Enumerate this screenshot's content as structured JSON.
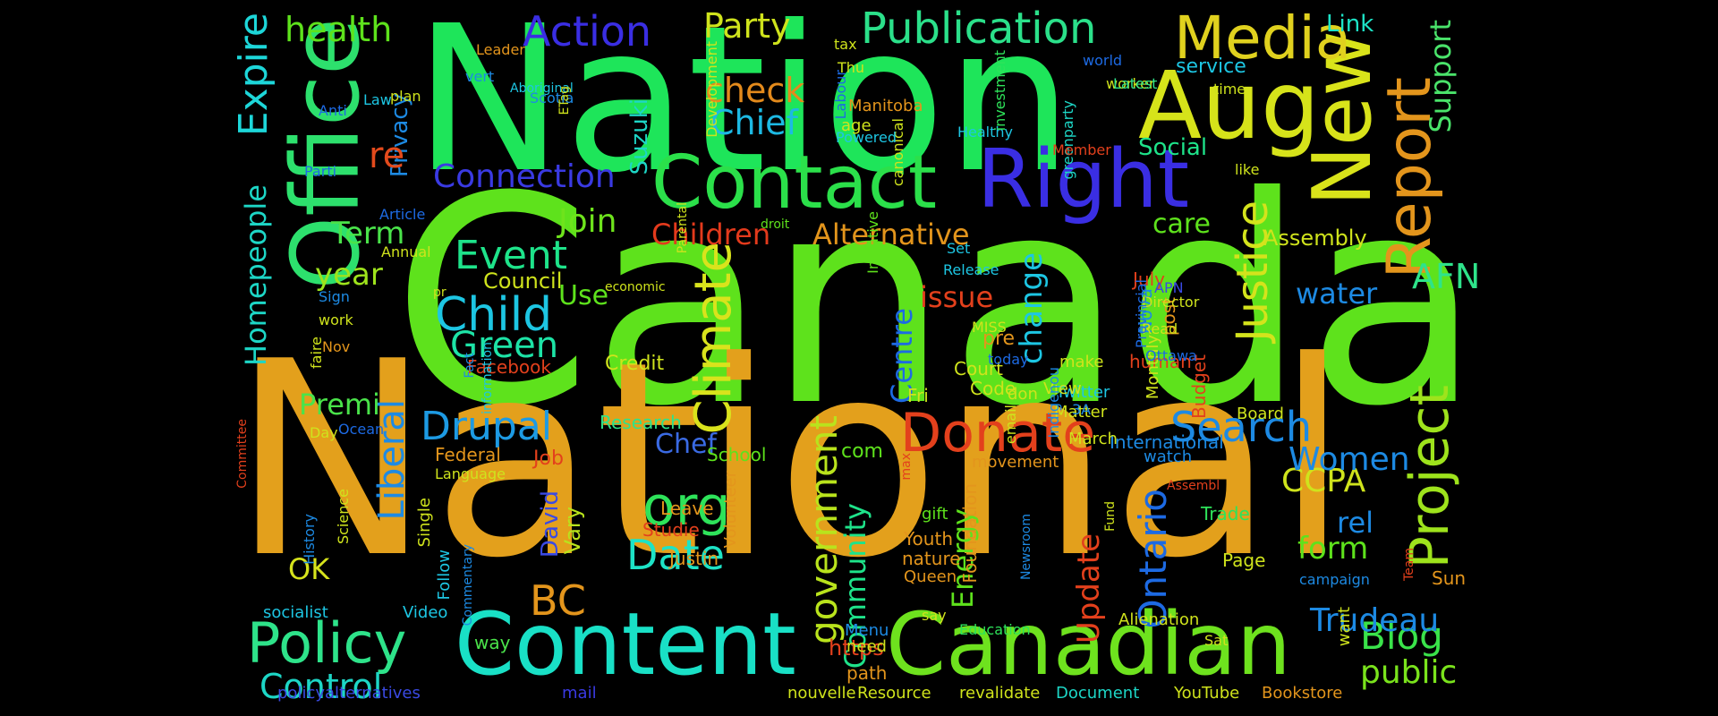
{
  "word_cloud": {
    "words": [
      {
        "text": "Canada",
        "color": "#5ee21c",
        "vertical": false
      },
      {
        "text": "National",
        "color": "#e3a01c",
        "vertical": false
      },
      {
        "text": "Nation",
        "color": "#1ee55a",
        "vertical": false
      },
      {
        "text": "Content",
        "color": "#19e0c6",
        "vertical": false
      },
      {
        "text": "Canadian",
        "color": "#6ee21e",
        "vertical": false
      },
      {
        "text": "Office",
        "color": "#2de06d",
        "vertical": true
      },
      {
        "text": "Contact",
        "color": "#2be04a",
        "vertical": false
      },
      {
        "text": "Right",
        "color": "#3a2ee3",
        "vertical": false
      },
      {
        "text": "Aug",
        "color": "#d6e31a",
        "vertical": false
      },
      {
        "text": "New",
        "color": "#d9e31a",
        "vertical": true
      },
      {
        "text": "Media",
        "color": "#e0d11e",
        "vertical": false
      },
      {
        "text": "Report",
        "color": "#e3951c",
        "vertical": true
      },
      {
        "text": "Publication",
        "color": "#2be08a",
        "vertical": false
      },
      {
        "text": "Action",
        "color": "#3a2ee3",
        "vertical": false
      },
      {
        "text": "Party",
        "color": "#cfe31c",
        "vertical": false
      },
      {
        "text": "health",
        "color": "#5ee21c",
        "vertical": false
      },
      {
        "text": "Expire",
        "color": "#1dd6d9",
        "vertical": true
      },
      {
        "text": "check",
        "color": "#e38a1c",
        "vertical": false
      },
      {
        "text": "Chief",
        "color": "#1db9e3",
        "vertical": false
      },
      {
        "text": "Connection",
        "color": "#3a3ae3",
        "vertical": false
      },
      {
        "text": "Donate",
        "color": "#e3401c",
        "vertical": false
      },
      {
        "text": "Search",
        "color": "#1d8ae3",
        "vertical": false
      },
      {
        "text": "Drupal",
        "color": "#1d9ae3",
        "vertical": false
      },
      {
        "text": "Child",
        "color": "#1dc6e3",
        "vertical": false
      },
      {
        "text": "Event",
        "color": "#1ee38a",
        "vertical": false
      },
      {
        "text": "Green",
        "color": "#1de3a6",
        "vertical": false
      },
      {
        "text": "Climate",
        "color": "#d9e31c",
        "vertical": true
      },
      {
        "text": "Project",
        "color": "#9ee31c",
        "vertical": true
      },
      {
        "text": "Justice",
        "color": "#d4e31c",
        "vertical": true
      },
      {
        "text": "Policy",
        "color": "#2ee38a",
        "vertical": false
      },
      {
        "text": "Control",
        "color": "#1dd6c6",
        "vertical": false
      },
      {
        "text": "Blog",
        "color": "#3ae34a",
        "vertical": false
      },
      {
        "text": "public",
        "color": "#7ae31c",
        "vertical": false
      },
      {
        "text": "Trudeau",
        "color": "#1d8ae3",
        "vertical": false
      },
      {
        "text": "org",
        "color": "#2ee35a",
        "vertical": false
      },
      {
        "text": "Date",
        "color": "#1de3c6",
        "vertical": false
      },
      {
        "text": "BC",
        "color": "#e3951c",
        "vertical": false
      },
      {
        "text": "Liberal",
        "color": "#1d8ae3",
        "vertical": true
      },
      {
        "text": "government",
        "color": "#b9e31c",
        "vertical": true
      },
      {
        "text": "Alternative",
        "color": "#e3951c",
        "vertical": false
      },
      {
        "text": "Children",
        "color": "#e33a1c",
        "vertical": false
      },
      {
        "text": "Join",
        "color": "#6ee31c",
        "vertical": false
      },
      {
        "text": "Term",
        "color": "#4ae34a",
        "vertical": false
      },
      {
        "text": "year",
        "color": "#9ee31c",
        "vertical": false
      },
      {
        "text": "Homepeople",
        "color": "#1dd6c6",
        "vertical": true
      },
      {
        "text": "Premi",
        "color": "#4ae34a",
        "vertical": false
      },
      {
        "text": "OK",
        "color": "#d6e31c",
        "vertical": false
      },
      {
        "text": "AFN",
        "color": "#2ee38a",
        "vertical": false
      },
      {
        "text": "water",
        "color": "#1d8ae3",
        "vertical": false
      },
      {
        "text": "CCPA",
        "color": "#cfe31c",
        "vertical": false
      },
      {
        "text": "Women",
        "color": "#1d8ae3",
        "vertical": false
      },
      {
        "text": "rel",
        "color": "#1d8ae3",
        "vertical": false
      },
      {
        "text": "form",
        "color": "#5ee21c",
        "vertical": false
      },
      {
        "text": "Ontario",
        "color": "#1d6ae3",
        "vertical": true
      },
      {
        "text": "Update",
        "color": "#e3401c",
        "vertical": true
      },
      {
        "text": "Energy",
        "color": "#5ee21c",
        "vertical": true
      },
      {
        "text": "Community",
        "color": "#1ee38a",
        "vertical": true
      },
      {
        "text": "Centre",
        "color": "#1d6ae3",
        "vertical": true
      },
      {
        "text": "change",
        "color": "#1dc6e3",
        "vertical": true
      },
      {
        "text": "issue",
        "color": "#e3401c",
        "vertical": false
      },
      {
        "text": "care",
        "color": "#5ee21c",
        "vertical": false
      },
      {
        "text": "Assembly",
        "color": "#cfe31c",
        "vertical": false
      },
      {
        "text": "Support",
        "color": "#4ae36a",
        "vertical": true
      },
      {
        "text": "Social",
        "color": "#1ee38a",
        "vertical": false
      },
      {
        "text": "Link",
        "color": "#1de3c6",
        "vertical": false
      },
      {
        "text": "service",
        "color": "#1dc6e3",
        "vertical": false
      },
      {
        "text": "Use",
        "color": "#5ee21c",
        "vertical": false
      },
      {
        "text": "Council",
        "color": "#cfe31c",
        "vertical": false
      },
      {
        "text": "David",
        "color": "#3a4ae3",
        "vertical": true
      },
      {
        "text": "Vary",
        "color": "#b9e31c",
        "vertical": true
      },
      {
        "text": "Chef",
        "color": "#3a6ae3",
        "vertical": false
      },
      {
        "text": "com",
        "color": "#5ee21c",
        "vertical": false
      },
      {
        "text": "Job",
        "color": "#e3401c",
        "vertical": false
      },
      {
        "text": "https",
        "color": "#e3401c",
        "vertical": false
      },
      {
        "text": "Privacy",
        "color": "#1d8ae3",
        "vertical": true
      },
      {
        "text": "re",
        "color": "#e34a1c",
        "vertical": false
      },
      {
        "text": "Suzuki",
        "color": "#1dd6c6",
        "vertical": true
      },
      {
        "text": "Credit",
        "color": "#cfe31c",
        "vertical": false
      },
      {
        "text": "Facebook",
        "color": "#e3401c",
        "vertical": false
      },
      {
        "text": "Research",
        "color": "#2ee38a",
        "vertical": false
      },
      {
        "text": "Federal",
        "color": "#e3951c",
        "vertical": false
      },
      {
        "text": "School",
        "color": "#5ee21c",
        "vertical": false
      },
      {
        "text": "Leave",
        "color": "#e3951c",
        "vertical": false
      },
      {
        "text": "Justin",
        "color": "#e3951c",
        "vertical": false
      },
      {
        "text": "Studie",
        "color": "#e3401c",
        "vertical": false
      },
      {
        "text": "Volunteer",
        "color": "#e3951c",
        "vertical": true
      },
      {
        "text": "Youth",
        "color": "#e3951c",
        "vertical": false
      },
      {
        "text": "nature",
        "color": "#e3951c",
        "vertical": false
      },
      {
        "text": "gift",
        "color": "#5ee21c",
        "vertical": false
      },
      {
        "text": "Queen",
        "color": "#e3951c",
        "vertical": false
      },
      {
        "text": "Foundation",
        "color": "#e3951c",
        "vertical": true
      },
      {
        "text": "Trade",
        "color": "#2ee35a",
        "vertical": false
      },
      {
        "text": "Page",
        "color": "#cfe31c",
        "vertical": false
      },
      {
        "text": "campaign",
        "color": "#1d8ae3",
        "vertical": false
      },
      {
        "text": "Sun",
        "color": "#e3951c",
        "vertical": false
      },
      {
        "text": "Team",
        "color": "#e3401c",
        "vertical": true
      },
      {
        "text": "Bookstore",
        "color": "#e3951c",
        "vertical": false
      },
      {
        "text": "YouTube",
        "color": "#cfe31c",
        "vertical": false
      },
      {
        "text": "Document",
        "color": "#1dd6c6",
        "vertical": false
      },
      {
        "text": "revalidate",
        "color": "#cfe31c",
        "vertical": false
      },
      {
        "text": "Resource",
        "color": "#cfe31c",
        "vertical": false
      },
      {
        "text": "nouvelle",
        "color": "#cfe31c",
        "vertical": false
      },
      {
        "text": "mail",
        "color": "#3a3ae3",
        "vertical": false
      },
      {
        "text": "policyalternatives",
        "color": "#3a4ae3",
        "vertical": false
      },
      {
        "text": "socialist",
        "color": "#1dc6e3",
        "vertical": false
      },
      {
        "text": "Video",
        "color": "#1dc6e3",
        "vertical": false
      },
      {
        "text": "way",
        "color": "#4ae34a",
        "vertical": false
      },
      {
        "text": "path",
        "color": "#e3951c",
        "vertical": false
      },
      {
        "text": "Menu",
        "color": "#1d8ae3",
        "vertical": false
      },
      {
        "text": "need",
        "color": "#cfe31c",
        "vertical": false
      },
      {
        "text": "say",
        "color": "#cfe31c",
        "vertical": false
      },
      {
        "text": "Education",
        "color": "#2ee35a",
        "vertical": false
      },
      {
        "text": "Alienation",
        "color": "#cfe31c",
        "vertical": false
      },
      {
        "text": "Sat",
        "color": "#cfe31c",
        "vertical": false
      },
      {
        "text": "want",
        "color": "#cfe31c",
        "vertical": true
      },
      {
        "text": "Assembl",
        "color": "#e3401c",
        "vertical": false
      },
      {
        "text": "Fund",
        "color": "#cfe31c",
        "vertical": true
      },
      {
        "text": "Newsroom",
        "color": "#1d8ae3",
        "vertical": true
      },
      {
        "text": "max",
        "color": "#e3401c",
        "vertical": true
      },
      {
        "text": "movement",
        "color": "#e3951c",
        "vertical": false
      },
      {
        "text": "watch",
        "color": "#1d8ae3",
        "vertical": false
      },
      {
        "text": "International",
        "color": "#1d8ae3",
        "vertical": false
      },
      {
        "text": "Matter",
        "color": "#cfe31c",
        "vertical": false
      },
      {
        "text": "Twitter",
        "color": "#1dc6e3",
        "vertical": false
      },
      {
        "text": "View",
        "color": "#cfe31c",
        "vertical": false
      },
      {
        "text": "Board",
        "color": "#cfe31c",
        "vertical": false
      },
      {
        "text": "Court",
        "color": "#cfe31c",
        "vertical": false
      },
      {
        "text": "make",
        "color": "#cfe31c",
        "vertical": false
      },
      {
        "text": "pre",
        "color": "#e3951c",
        "vertical": false
      },
      {
        "text": "post",
        "color": "#e3951c",
        "vertical": true
      },
      {
        "text": "July",
        "color": "#e3401c",
        "vertical": false
      },
      {
        "text": "Budget",
        "color": "#e3401c",
        "vertical": true
      },
      {
        "text": "Nova",
        "color": "#1d8ae3",
        "vertical": true
      },
      {
        "text": "human",
        "color": "#e3401c",
        "vertical": false
      },
      {
        "text": "don",
        "color": "#cfe31c",
        "vertical": false
      },
      {
        "text": "Fri",
        "color": "#cfe31c",
        "vertical": false
      },
      {
        "text": "email",
        "color": "#cfe31c",
        "vertical": true
      },
      {
        "text": "Indigenou",
        "color": "#1d8ae3",
        "vertical": true
      },
      {
        "text": "Monthly",
        "color": "#cfe31c",
        "vertical": true
      },
      {
        "text": "March",
        "color": "#cfe31c",
        "vertical": false
      },
      {
        "text": "3A",
        "color": "#1d8ae3",
        "vertical": false
      },
      {
        "text": "Ottawa",
        "color": "#1d6ae3",
        "vertical": false
      },
      {
        "text": "Read",
        "color": "#cfe31c",
        "vertical": false
      },
      {
        "text": "Director",
        "color": "#cfe31c",
        "vertical": false
      },
      {
        "text": "Provincial",
        "color": "#1d6ae3",
        "vertical": true
      },
      {
        "text": "APN",
        "color": "#3a4ae3",
        "vertical": false
      },
      {
        "text": "Code",
        "color": "#cfe31c",
        "vertical": false
      },
      {
        "text": "today",
        "color": "#1d6ae3",
        "vertical": false
      },
      {
        "text": "MISS",
        "color": "#cfe31c",
        "vertical": false
      },
      {
        "text": "Release",
        "color": "#1dc6e3",
        "vertical": false
      },
      {
        "text": "Set",
        "color": "#1dc6e3",
        "vertical": false
      },
      {
        "text": "Initiative",
        "color": "#5ee21c",
        "vertical": true
      },
      {
        "text": "droit",
        "color": "#5ee21c",
        "vertical": false
      },
      {
        "text": "Parental",
        "color": "#cfe31c",
        "vertical": true
      },
      {
        "text": "economic",
        "color": "#cfe31c",
        "vertical": false
      },
      {
        "text": "information",
        "color": "#1dc6e3",
        "vertical": true
      },
      {
        "text": "Fact",
        "color": "#1d8ae3",
        "vertical": true
      },
      {
        "text": "pr",
        "color": "#cfe31c",
        "vertical": false
      },
      {
        "text": "Sign",
        "color": "#1d8ae3",
        "vertical": false
      },
      {
        "text": "work",
        "color": "#cfe31c",
        "vertical": false
      },
      {
        "text": "faire",
        "color": "#cfe31c",
        "vertical": true
      },
      {
        "text": "Day",
        "color": "#cfe31c",
        "vertical": false
      },
      {
        "text": "Nov",
        "color": "#e3951c",
        "vertical": false
      },
      {
        "text": "Ocean",
        "color": "#1d6ae3",
        "vertical": false
      },
      {
        "text": "Committee",
        "color": "#e3401c",
        "vertical": true
      },
      {
        "text": "Science",
        "color": "#cfe31c",
        "vertical": true
      },
      {
        "text": "History",
        "color": "#1d8ae3",
        "vertical": true
      },
      {
        "text": "Language",
        "color": "#cfe31c",
        "vertical": false
      },
      {
        "text": "Single",
        "color": "#cfe31c",
        "vertical": true
      },
      {
        "text": "Follow",
        "color": "#1dc6e3",
        "vertical": true
      },
      {
        "text": "Commentary",
        "color": "#1d8ae3",
        "vertical": true
      },
      {
        "text": "Article",
        "color": "#1d6ae3",
        "vertical": false
      },
      {
        "text": "Annual",
        "color": "#cfe31c",
        "vertical": false
      },
      {
        "text": "Parti",
        "color": "#1d6ae3",
        "vertical": false
      },
      {
        "text": "Anti",
        "color": "#1d6ae3",
        "vertical": false
      },
      {
        "text": "Law",
        "color": "#1dc6e3",
        "vertical": false
      },
      {
        "text": "plan",
        "color": "#cfe31c",
        "vertical": false
      },
      {
        "text": "vert",
        "color": "#1d8ae3",
        "vertical": false
      },
      {
        "text": "Leader",
        "color": "#e3951c",
        "vertical": false
      },
      {
        "text": "Scotia",
        "color": "#1d8ae3",
        "vertical": false
      },
      {
        "text": "Aboriginal",
        "color": "#1dc6e3",
        "vertical": false
      },
      {
        "text": "ETag",
        "color": "#cfe31c",
        "vertical": true
      },
      {
        "text": "Development",
        "color": "#cfe31c",
        "vertical": true
      },
      {
        "text": "tax",
        "color": "#cfe31c",
        "vertical": false
      },
      {
        "text": "Thu",
        "color": "#cfe31c",
        "vertical": false
      },
      {
        "text": "Labour",
        "color": "#1d6ae3",
        "vertical": true
      },
      {
        "text": "age",
        "color": "#cfe31c",
        "vertical": false
      },
      {
        "text": "canonical",
        "color": "#cfe31c",
        "vertical": true
      },
      {
        "text": "Manitoba",
        "color": "#e3951c",
        "vertical": false
      },
      {
        "text": "Powered",
        "color": "#1dc6e3",
        "vertical": false
      },
      {
        "text": "Healthy",
        "color": "#1dc6e3",
        "vertical": false
      },
      {
        "text": "investment",
        "color": "#2ee35a",
        "vertical": true
      },
      {
        "text": "greenparty",
        "color": "#1dd6c6",
        "vertical": true
      },
      {
        "text": "Member",
        "color": "#e3401c",
        "vertical": false
      },
      {
        "text": "world",
        "color": "#1d6ae3",
        "vertical": false
      },
      {
        "text": "worker",
        "color": "#cfe31c",
        "vertical": false
      },
      {
        "text": "Latest",
        "color": "#2ee38a",
        "vertical": false
      },
      {
        "text": "time",
        "color": "#cfe31c",
        "vertical": false
      },
      {
        "text": "like",
        "color": "#cfe31c",
        "vertical": false
      }
    ]
  }
}
